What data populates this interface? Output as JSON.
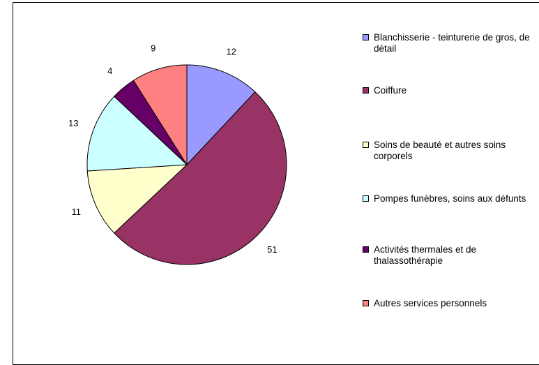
{
  "chart_data": {
    "type": "pie",
    "categories": [
      "Blanchisserie - teinturerie de gros, de détail",
      "Coiffure",
      "Soins de beauté et autres soins corporels",
      "Pompes funèbres, soins aux défunts",
      "Activités thermales et de thalassothérapie",
      "Autres services personnels"
    ],
    "values": [
      12,
      51,
      11,
      13,
      4,
      9
    ],
    "colors": [
      "#9999ff",
      "#993366",
      "#ffffcc",
      "#ccffff",
      "#660066",
      "#ff8080"
    ],
    "legend": "right"
  }
}
